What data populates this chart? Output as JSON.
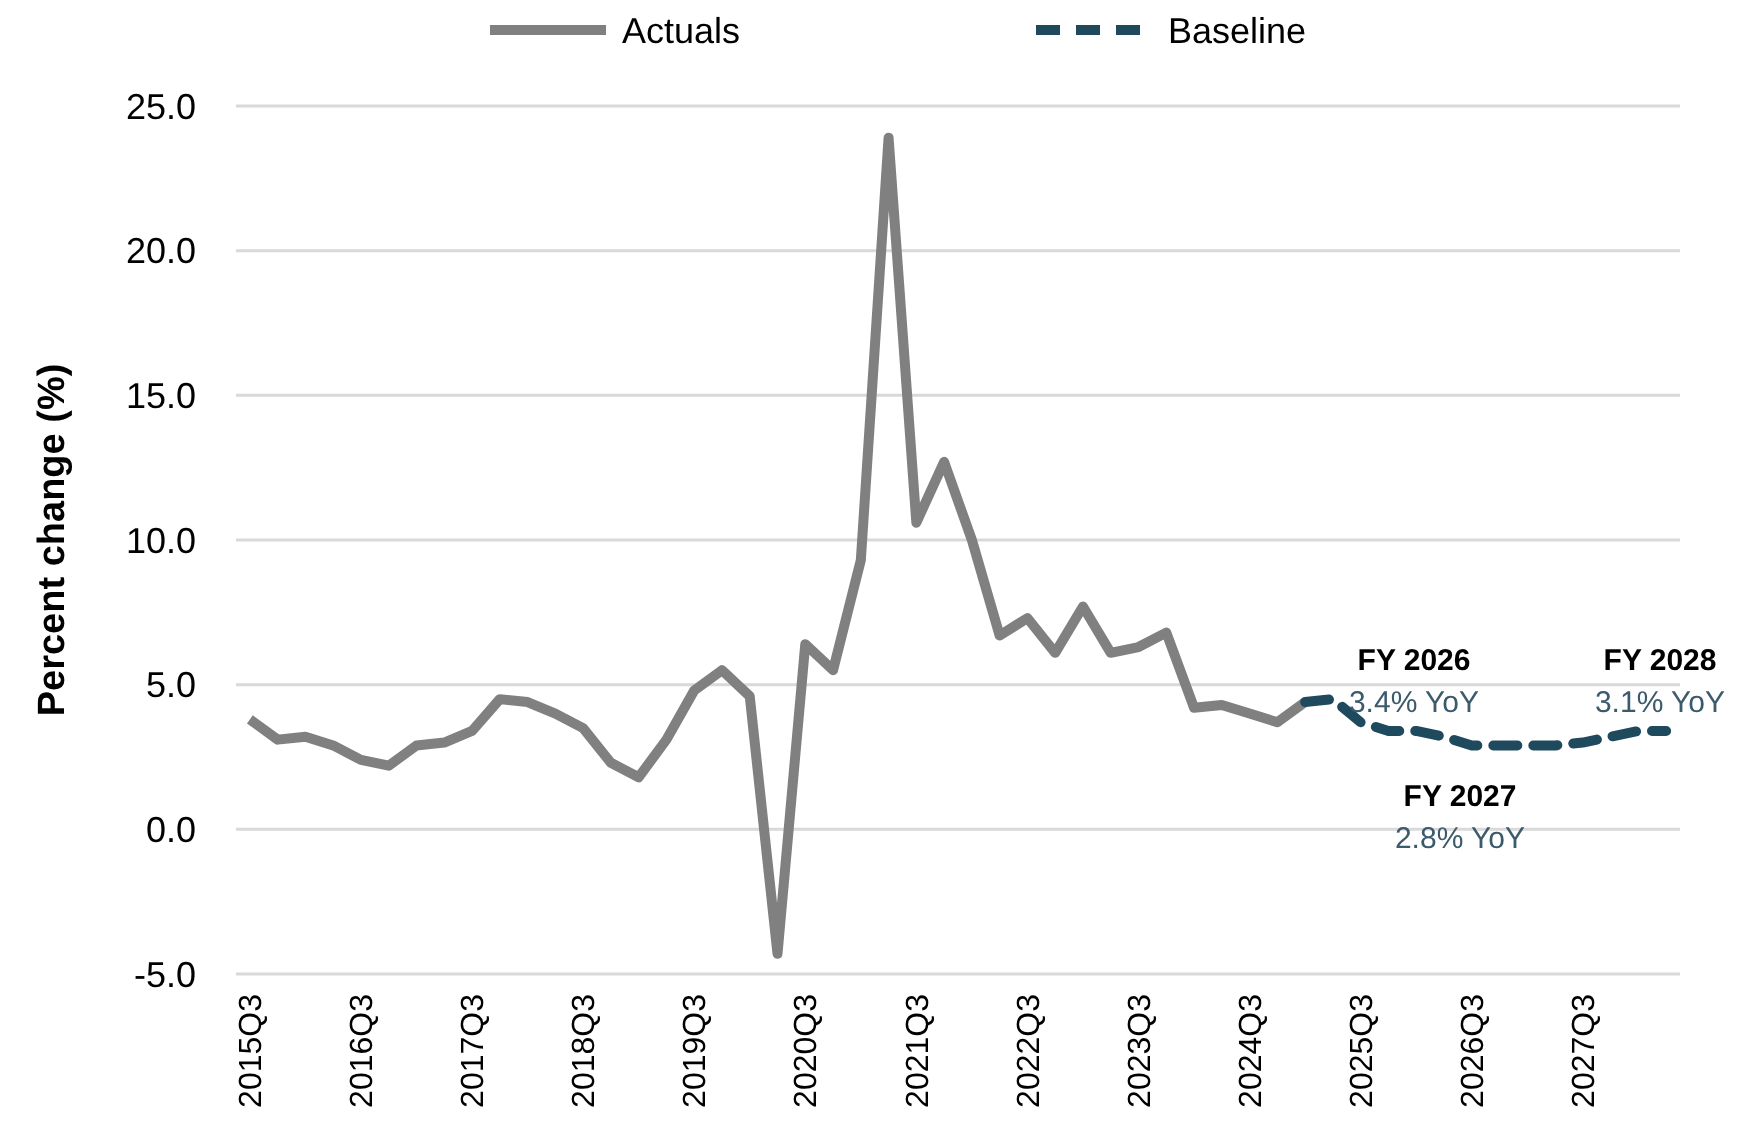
{
  "chart_data": {
    "type": "line",
    "ylabel": "Percent change (%)",
    "categories": [
      "2015Q3",
      null,
      null,
      null,
      "2016Q3",
      null,
      null,
      null,
      "2017Q3",
      null,
      null,
      null,
      "2018Q3",
      null,
      null,
      null,
      "2019Q3",
      null,
      null,
      null,
      "2020Q3",
      null,
      null,
      null,
      "2021Q3",
      null,
      null,
      null,
      "2022Q3",
      null,
      null,
      null,
      "2023Q3",
      null,
      null,
      null,
      "2024Q3",
      null,
      null,
      null,
      "2025Q3",
      null,
      null,
      null,
      "2026Q3",
      null,
      null,
      null,
      "2027Q3",
      null,
      null,
      null
    ],
    "series": [
      {
        "name": "Actuals",
        "color": "#808080",
        "line_style": "solid",
        "values": [
          3.8,
          3.1,
          3.2,
          2.9,
          2.4,
          2.2,
          2.9,
          3.0,
          3.4,
          4.5,
          4.4,
          4.0,
          3.5,
          2.3,
          1.8,
          3.1,
          4.8,
          5.5,
          4.6,
          -4.3,
          6.4,
          5.5,
          9.3,
          23.9,
          10.6,
          12.7,
          10.0,
          6.7,
          7.3,
          6.1,
          7.7,
          6.1,
          6.3,
          6.8,
          4.2,
          4.3,
          4.0,
          3.7,
          4.4,
          null,
          null,
          null,
          null,
          null,
          null,
          null,
          null,
          null,
          null,
          null,
          null,
          null
        ]
      },
      {
        "name": "Baseline",
        "color": "#1f4a5e",
        "line_style": "dashed",
        "values": [
          null,
          null,
          null,
          null,
          null,
          null,
          null,
          null,
          null,
          null,
          null,
          null,
          null,
          null,
          null,
          null,
          null,
          null,
          null,
          null,
          null,
          null,
          null,
          null,
          null,
          null,
          null,
          null,
          null,
          null,
          null,
          null,
          null,
          null,
          null,
          null,
          null,
          null,
          4.4,
          4.5,
          3.7,
          3.4,
          3.4,
          3.2,
          2.9,
          2.9,
          2.9,
          2.9,
          3.0,
          3.2,
          3.4,
          3.4
        ]
      }
    ],
    "ylim": [
      -5,
      25
    ],
    "yticks": [
      {
        "value": -5,
        "label": "-5.0"
      },
      {
        "value": 0,
        "label": "0.0"
      },
      {
        "value": 5,
        "label": "5.0"
      },
      {
        "value": 10,
        "label": "10.0"
      },
      {
        "value": 15,
        "label": "15.0"
      },
      {
        "value": 20,
        "label": "20.0"
      },
      {
        "value": 25,
        "label": "25.0"
      }
    ],
    "grid": "y",
    "legend": "top",
    "annotations": [
      "FY 2026\n3.4% YoY",
      "FY 2027\n2.8% YoY",
      "FY 2028\n3.1% YoY"
    ]
  }
}
